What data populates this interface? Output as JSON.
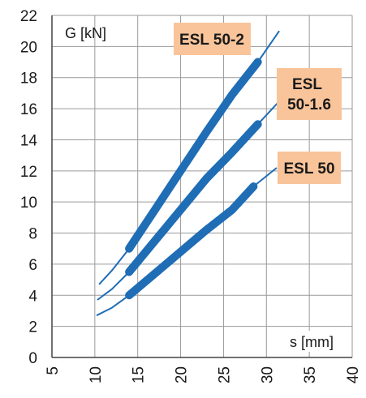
{
  "chart_data": {
    "type": "line",
    "xlabel": "s [mm]",
    "ylabel": "G [kN]",
    "xlim": [
      5,
      40
    ],
    "ylim": [
      0,
      22
    ],
    "x_ticks": [
      "5",
      "10",
      "15",
      "20",
      "25",
      "30",
      "35",
      "40"
    ],
    "y_ticks": [
      "0",
      "2",
      "4",
      "6",
      "8",
      "10",
      "12",
      "14",
      "16",
      "18",
      "20",
      "22"
    ],
    "grid": true,
    "line_color": "#1f6db5",
    "label_box_color": "#f9c49a",
    "series": [
      {
        "name": "ESL 50-2",
        "thin": [
          [
            10.5,
            4.7
          ],
          [
            12,
            5.6
          ],
          [
            14,
            7.0
          ],
          [
            17,
            9.5
          ],
          [
            20,
            12.0
          ],
          [
            23,
            14.5
          ],
          [
            26,
            16.9
          ],
          [
            29,
            19.0
          ],
          [
            31.5,
            21.0
          ]
        ],
        "thick_range": [
          14,
          29
        ]
      },
      {
        "name": "ESL 50-1.6",
        "thin": [
          [
            10.3,
            3.7
          ],
          [
            12,
            4.4
          ],
          [
            14,
            5.5
          ],
          [
            17,
            7.5
          ],
          [
            20,
            9.5
          ],
          [
            23,
            11.5
          ],
          [
            26,
            13.2
          ],
          [
            29,
            15.0
          ],
          [
            31.7,
            16.6
          ]
        ],
        "thick_range": [
          14,
          29
        ]
      },
      {
        "name": "ESL 50",
        "thin": [
          [
            10.2,
            2.7
          ],
          [
            12,
            3.2
          ],
          [
            14,
            4.0
          ],
          [
            17,
            5.4
          ],
          [
            20,
            6.8
          ],
          [
            23,
            8.2
          ],
          [
            26,
            9.5
          ],
          [
            28.5,
            11.0
          ],
          [
            31.2,
            12.2
          ]
        ],
        "thick_range": [
          14,
          28.5
        ]
      }
    ]
  }
}
